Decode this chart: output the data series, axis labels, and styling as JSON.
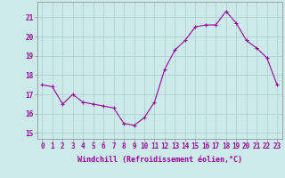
{
  "x": [
    0,
    1,
    2,
    3,
    4,
    5,
    6,
    7,
    8,
    9,
    10,
    11,
    12,
    13,
    14,
    15,
    16,
    17,
    18,
    19,
    20,
    21,
    22,
    23
  ],
  "y": [
    17.5,
    17.4,
    16.5,
    17.0,
    16.6,
    16.5,
    16.4,
    16.3,
    15.5,
    15.4,
    15.8,
    16.6,
    18.3,
    19.3,
    19.8,
    20.5,
    20.6,
    20.6,
    21.3,
    20.7,
    19.8,
    19.4,
    18.9,
    17.5
  ],
  "line_color": "#990099",
  "marker_color": "#990099",
  "bg_color": "#cceaea",
  "grid_color": "#aacccc",
  "xlabel": "Windchill (Refroidissement éolien,°C)",
  "yticks": [
    15,
    16,
    17,
    18,
    19,
    20,
    21
  ],
  "xticks": [
    0,
    1,
    2,
    3,
    4,
    5,
    6,
    7,
    8,
    9,
    10,
    11,
    12,
    13,
    14,
    15,
    16,
    17,
    18,
    19,
    20,
    21,
    22,
    23
  ],
  "ylim": [
    14.7,
    21.8
  ],
  "xlim": [
    -0.5,
    23.5
  ],
  "tick_fontsize": 5.5,
  "label_fontsize": 6.0
}
